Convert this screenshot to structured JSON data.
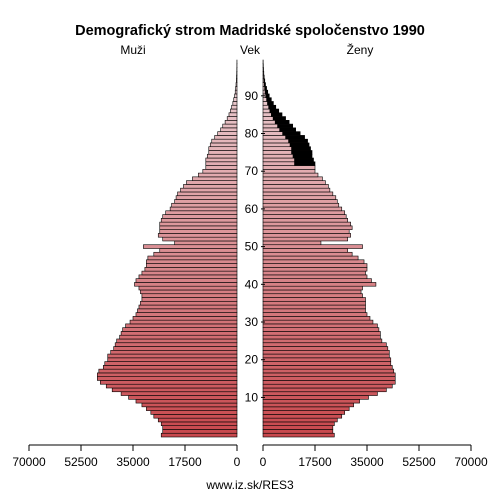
{
  "chart_data": {
    "type": "population-pyramid",
    "title": "Demografický strom Madridské spoločenstvo 1990",
    "left_label": "Muži",
    "center_label": "Vek",
    "right_label": "Ženy",
    "footer": "www.iz.sk/RES3",
    "x_ticks_left": [
      "70000",
      "52500",
      "35000",
      "17500",
      "0"
    ],
    "x_ticks_right": [
      "0",
      "17500",
      "35000",
      "52500",
      "70000"
    ],
    "xlim": [
      0,
      70000
    ],
    "age_ticks": [
      "10",
      "20",
      "30",
      "40",
      "50",
      "60",
      "70",
      "80",
      "90"
    ],
    "age_range": [
      0,
      99
    ],
    "colors": {
      "young": "#c8484d",
      "old": "#e9c8cc",
      "surplus": "#000000"
    },
    "ages": [
      0,
      1,
      2,
      3,
      4,
      5,
      6,
      7,
      8,
      9,
      10,
      11,
      12,
      13,
      14,
      15,
      16,
      17,
      18,
      19,
      20,
      21,
      22,
      23,
      24,
      25,
      26,
      27,
      28,
      29,
      30,
      31,
      32,
      33,
      34,
      35,
      36,
      37,
      38,
      39,
      40,
      41,
      42,
      43,
      44,
      45,
      46,
      47,
      48,
      49,
      50,
      51,
      52,
      53,
      54,
      55,
      56,
      57,
      58,
      59,
      60,
      61,
      62,
      63,
      64,
      65,
      66,
      67,
      68,
      69,
      70,
      71,
      72,
      73,
      74,
      75,
      76,
      77,
      78,
      79,
      80,
      81,
      82,
      83,
      84,
      85,
      86,
      87,
      88,
      89,
      90,
      91,
      92,
      93,
      94,
      95,
      96,
      97,
      98,
      99
    ],
    "males": [
      25500,
      25000,
      25000,
      25500,
      26500,
      28000,
      29000,
      30500,
      32000,
      34000,
      36500,
      39000,
      42000,
      44000,
      46000,
      47000,
      47000,
      46500,
      45000,
      44500,
      43500,
      43500,
      42500,
      41500,
      41000,
      40500,
      39500,
      39000,
      38500,
      37500,
      36000,
      35000,
      34000,
      33500,
      33000,
      32500,
      32000,
      32000,
      32500,
      33000,
      34500,
      34000,
      33000,
      32000,
      31000,
      30500,
      30500,
      30000,
      28000,
      26000,
      31500,
      21000,
      25000,
      26500,
      26000,
      26000,
      26000,
      25500,
      25000,
      24000,
      22500,
      22000,
      21000,
      20500,
      20000,
      19000,
      18000,
      17000,
      15000,
      13000,
      11500,
      10500,
      10500,
      10500,
      10000,
      9500,
      9500,
      9000,
      8500,
      7500,
      6500,
      5500,
      4800,
      4000,
      3300,
      2700,
      2200,
      1800,
      1400,
      1100,
      800,
      600,
      450,
      330,
      230,
      150,
      100,
      70,
      45,
      30
    ],
    "females": [
      24000,
      23500,
      23500,
      24000,
      25000,
      26500,
      27500,
      29000,
      30500,
      32500,
      35500,
      38500,
      41500,
      43500,
      44500,
      44500,
      44500,
      44000,
      43500,
      43000,
      43000,
      42500,
      42500,
      42000,
      41500,
      40000,
      39500,
      39500,
      39000,
      38500,
      37000,
      36000,
      35000,
      34500,
      34500,
      34500,
      34500,
      33500,
      33000,
      33500,
      38000,
      36500,
      35000,
      34500,
      35000,
      35000,
      34000,
      32000,
      30000,
      28500,
      33500,
      19500,
      28500,
      29500,
      29000,
      30000,
      29500,
      28500,
      28000,
      27500,
      26500,
      25500,
      25000,
      24500,
      23500,
      22500,
      22000,
      21000,
      20000,
      18500,
      17500,
      17500,
      17500,
      17000,
      16500,
      16500,
      16000,
      15500,
      15000,
      14000,
      12500,
      11000,
      10000,
      8800,
      7600,
      6400,
      5300,
      4300,
      3500,
      2800,
      2100,
      1600,
      1200,
      850,
      600,
      400,
      270,
      180,
      110,
      60
    ],
    "female_excess_from_age": 72
  }
}
